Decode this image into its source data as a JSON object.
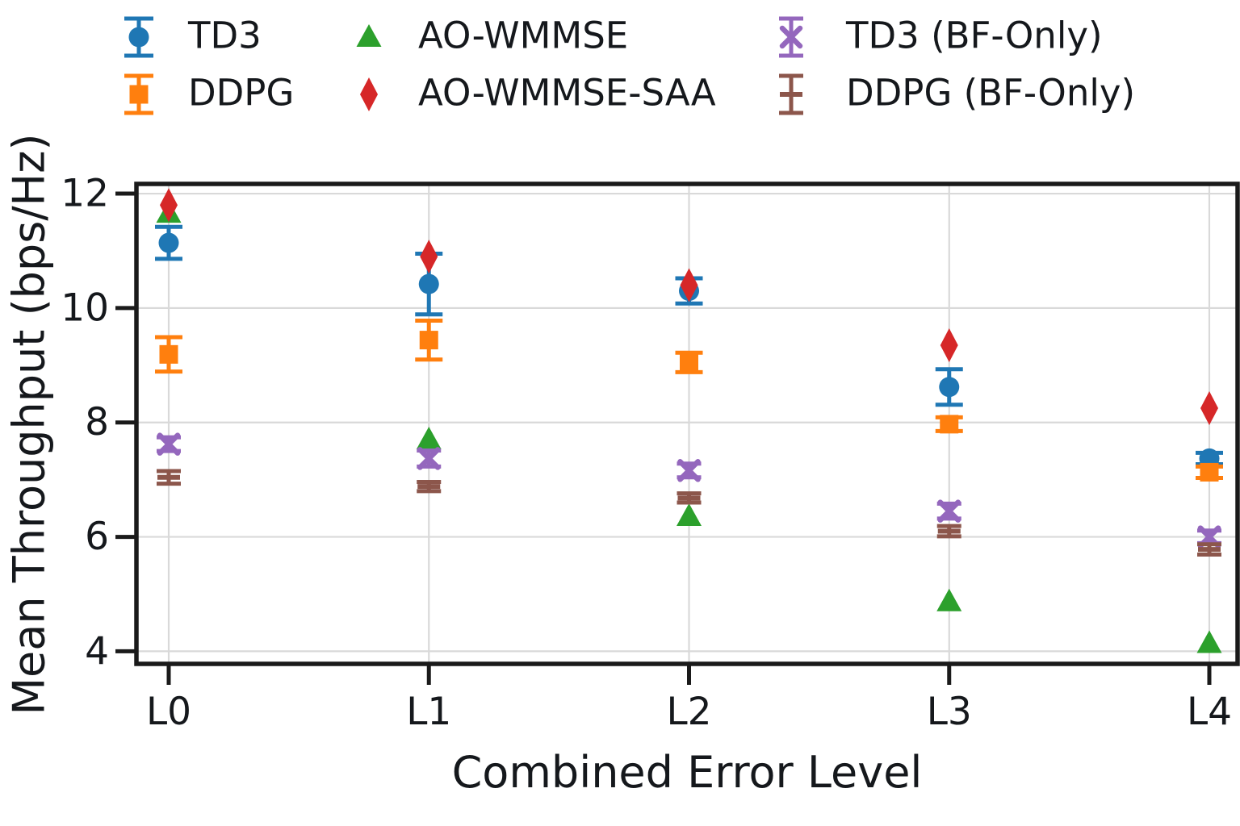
{
  "chart_data": {
    "type": "scatter",
    "title": "",
    "xlabel": "Combined Error Level",
    "ylabel": "Mean Throughput (bps/Hz)",
    "categories": [
      "L0",
      "L1",
      "L2",
      "L3",
      "L4"
    ],
    "yticks": [
      4,
      6,
      8,
      10,
      12
    ],
    "ylim": [
      3.78,
      12.17
    ],
    "grid": true,
    "legend_position": "top",
    "series": [
      {
        "name": "TD3",
        "color": "#1f77b4",
        "marker": "circle",
        "values": [
          11.14,
          10.42,
          10.3,
          8.62,
          7.37
        ],
        "yerr": [
          0.28,
          0.53,
          0.22,
          0.31,
          0.1
        ]
      },
      {
        "name": "DDPG",
        "color": "#ff7f0e",
        "marker": "square",
        "values": [
          9.19,
          9.44,
          9.05,
          7.97,
          7.13
        ],
        "yerr": [
          0.3,
          0.34,
          0.17,
          0.12,
          0.1
        ]
      },
      {
        "name": "AO-WMMSE",
        "color": "#2ca02c",
        "marker": "triangle",
        "values": [
          11.66,
          7.7,
          6.36,
          4.87,
          4.14
        ],
        "yerr": null
      },
      {
        "name": "AO-WMMSE-SAA",
        "color": "#d62728",
        "marker": "diamond",
        "values": [
          11.8,
          10.9,
          10.4,
          9.35,
          8.25
        ],
        "yerr": null
      },
      {
        "name": "TD3 (BF-Only)",
        "color": "#9467bd",
        "marker": "x",
        "values": [
          7.62,
          7.37,
          7.16,
          6.45,
          6.0
        ],
        "yerr": [
          0.12,
          0.14,
          0.12,
          0.13,
          0.11
        ]
      },
      {
        "name": "DDPG (BF-Only)",
        "color": "#8c564b",
        "marker": "hline",
        "values": [
          7.04,
          6.88,
          6.68,
          6.1,
          5.78
        ],
        "yerr": [
          0.11,
          0.08,
          0.08,
          0.09,
          0.09
        ]
      }
    ]
  }
}
